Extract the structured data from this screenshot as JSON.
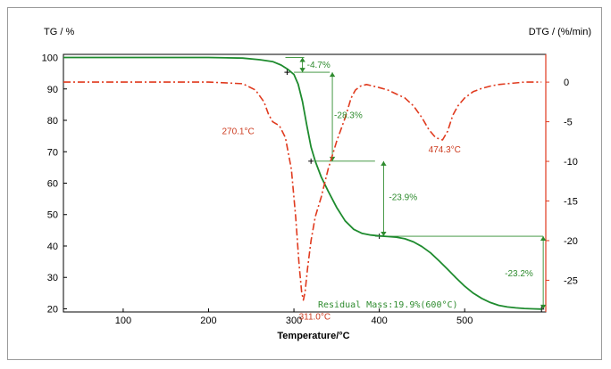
{
  "chart_data": {
    "type": "line",
    "xlabel": "Temperature/°C",
    "y_left_label": "TG / %",
    "y_right_label": "DTG / (%/min)",
    "xlim": [
      30,
      595
    ],
    "ylim_left": [
      19,
      101
    ],
    "ylim_right": [
      -29,
      3.5
    ],
    "x_ticks": [
      100,
      200,
      300,
      400,
      500
    ],
    "y_left_ticks": [
      20,
      30,
      40,
      50,
      60,
      70,
      80,
      90,
      100
    ],
    "y_right_ticks": [
      0,
      -5,
      -10,
      -15,
      -20,
      -25
    ],
    "colors": {
      "tg": "#1e8b2e",
      "dtg": "#e03a1e",
      "annotation": "#2e8b2e",
      "peak_label": "#cc3a1e"
    },
    "series": [
      {
        "name": "TG",
        "axis": "left",
        "x": [
          30,
          200,
          240,
          260,
          275,
          285,
          293,
          300,
          305,
          310,
          315,
          320,
          325,
          332,
          340,
          350,
          360,
          370,
          380,
          390,
          400,
          410,
          420,
          430,
          440,
          450,
          460,
          470,
          480,
          490,
          500,
          510,
          520,
          530,
          540,
          550,
          560,
          570,
          580,
          590
        ],
        "y": [
          100,
          100,
          99.8,
          99.3,
          98.7,
          97.6,
          96.2,
          94.6,
          91.5,
          86.0,
          78.5,
          71.5,
          67.0,
          62.0,
          57.5,
          52.3,
          48.0,
          45.3,
          44.0,
          43.5,
          43.2,
          43.0,
          42.8,
          42.3,
          41.3,
          39.8,
          37.8,
          35.3,
          32.6,
          29.8,
          27.2,
          25.0,
          23.3,
          22.0,
          21.1,
          20.6,
          20.3,
          20.1,
          20.0,
          19.9
        ]
      },
      {
        "name": "DTG",
        "axis": "right",
        "x": [
          30,
          100,
          200,
          240,
          255,
          265,
          270,
          275,
          283,
          290,
          297,
          302,
          306,
          309,
          311,
          313,
          316,
          320,
          325,
          332,
          340,
          350,
          360,
          367,
          372,
          378,
          385,
          393,
          400,
          410,
          420,
          430,
          440,
          450,
          458,
          466,
          474,
          480,
          486,
          492,
          500,
          510,
          520,
          530,
          540,
          550,
          560,
          570,
          580,
          590
        ],
        "y": [
          0,
          0,
          0,
          -0.2,
          -1.0,
          -2.5,
          -4.0,
          -5.0,
          -5.5,
          -7.0,
          -11.0,
          -17.0,
          -23.0,
          -26.5,
          -27.5,
          -26.5,
          -23.5,
          -20.0,
          -17.0,
          -14.5,
          -11.0,
          -7.5,
          -4.5,
          -2.0,
          -1.0,
          -0.5,
          -0.3,
          -0.5,
          -0.7,
          -1.0,
          -1.5,
          -2.0,
          -3.0,
          -4.5,
          -6.0,
          -7.0,
          -7.3,
          -6.2,
          -4.2,
          -3.0,
          -2.0,
          -1.2,
          -0.8,
          -0.5,
          -0.3,
          -0.2,
          -0.1,
          0,
          0,
          0
        ]
      }
    ],
    "peak_labels": [
      {
        "text": "270.1°C",
        "x": 270.1,
        "y": -5.0
      },
      {
        "text": "311.0°C",
        "x": 311.0,
        "y": -27.5
      },
      {
        "text": "474.3°C",
        "x": 474.3,
        "y": -7.3
      }
    ],
    "mass_losses": [
      {
        "text": "-4.7%",
        "x": 310,
        "from": 100,
        "to": 95.3
      },
      {
        "text": "-28.3%",
        "x": 345,
        "from": 95.3,
        "to": 67.0
      },
      {
        "text": "-23.9%",
        "x": 405,
        "from": 67.0,
        "to": 43.1
      },
      {
        "text": "-23.2%",
        "x": 592,
        "from": 43.1,
        "to": 19.9
      }
    ],
    "residual_mass": "Residual Mass:19.9%(600°C)"
  }
}
